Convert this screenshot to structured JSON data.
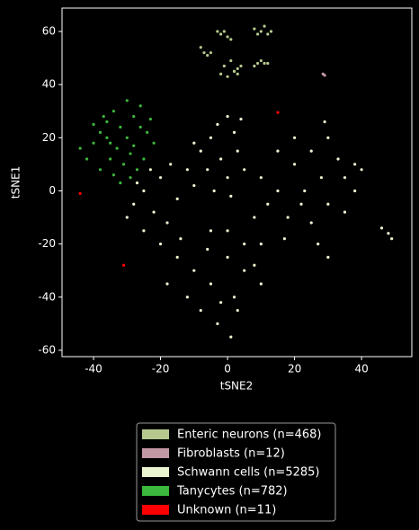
{
  "chart_data": {
    "type": "scatter",
    "x_label": "tSNE2",
    "y_label": "tSNE1",
    "xlim": [
      -49.4,
      55.0
    ],
    "ylim": [
      -62.4,
      68.8
    ],
    "xticks": [
      -40,
      -20,
      0,
      20,
      40
    ],
    "yticks": [
      -60,
      -40,
      -20,
      0,
      20,
      40,
      60
    ],
    "series": [
      {
        "name": "Enteric neurons (n=468)",
        "color": "#b5c98e",
        "x": [
          -8,
          -7,
          -6,
          -5,
          -3,
          -2,
          -1,
          0,
          1,
          2,
          3,
          4,
          8,
          9,
          10,
          11,
          12,
          13,
          9,
          11,
          -2,
          0,
          2,
          -1,
          1,
          3,
          8,
          10,
          12
        ],
        "y": [
          54,
          52,
          51,
          52,
          60,
          59,
          60,
          58,
          57,
          45,
          46,
          47,
          61,
          59,
          60,
          62,
          59,
          60,
          48,
          48,
          44,
          43,
          45,
          47,
          49,
          44,
          47,
          49,
          48
        ]
      },
      {
        "name": "Fibroblasts (n=12)",
        "color": "#c497a5",
        "x": [
          29,
          28.5
        ],
        "y": [
          43.5,
          44
        ]
      },
      {
        "name": "Schwann cells (n=5285)",
        "color": "#eaf5d0",
        "x": [
          -28,
          -25,
          -22,
          -20,
          -18,
          -15,
          -12,
          -25,
          -20,
          -14,
          -30,
          -17,
          -10,
          -23,
          -27,
          -8,
          -5,
          -3,
          0,
          2,
          -2,
          -6,
          3,
          0,
          -10,
          4,
          -4,
          5,
          1,
          10,
          15,
          20,
          25,
          30,
          33,
          35,
          28,
          22,
          18,
          25,
          12,
          8,
          15,
          20,
          30,
          35,
          38,
          27,
          30,
          17,
          23,
          38,
          29,
          40,
          -15,
          -10,
          -5,
          0,
          5,
          10,
          -8,
          -3,
          2,
          -12,
          -18,
          5,
          0,
          -5,
          10,
          3,
          -6,
          8,
          1,
          -2,
          46,
          48,
          49
        ],
        "y": [
          -5,
          0,
          -8,
          5,
          -12,
          -3,
          8,
          -15,
          -20,
          -18,
          -10,
          10,
          2,
          8,
          3,
          15,
          20,
          25,
          28,
          22,
          12,
          8,
          15,
          5,
          18,
          27,
          0,
          8,
          -2,
          5,
          0,
          10,
          15,
          20,
          12,
          5,
          5,
          -5,
          -10,
          -12,
          -5,
          -10,
          15,
          20,
          -5,
          -8,
          0,
          -20,
          -25,
          -18,
          0,
          10,
          26,
          8,
          -25,
          -30,
          -35,
          -25,
          -30,
          -35,
          -45,
          -50,
          -40,
          -40,
          -35,
          -20,
          -15,
          -15,
          -20,
          -45,
          -22,
          -28,
          -55,
          -42,
          -14,
          -16,
          -18
        ]
      },
      {
        "name": "Tanycytes (n=782)",
        "color": "#3cb83c",
        "x": [
          -44,
          -42,
          -40,
          -38,
          -36,
          -34,
          -32,
          -30,
          -28,
          -26,
          -24,
          -22,
          -38,
          -35,
          -33,
          -31,
          -29,
          -27,
          -25,
          -36,
          -34,
          -32,
          -40,
          -37,
          -30,
          -28,
          -26,
          -23,
          -35,
          -29
        ],
        "y": [
          16,
          12,
          18,
          22,
          26,
          30,
          24,
          20,
          28,
          32,
          22,
          18,
          8,
          12,
          16,
          10,
          14,
          8,
          12,
          20,
          6,
          3,
          25,
          28,
          34,
          17,
          24,
          27,
          18,
          5
        ]
      },
      {
        "name": "Unknown (n=11)",
        "color": "#ff0000",
        "x": [
          -44,
          -31,
          15
        ],
        "y": [
          -1,
          -28,
          29.5
        ]
      }
    ]
  }
}
